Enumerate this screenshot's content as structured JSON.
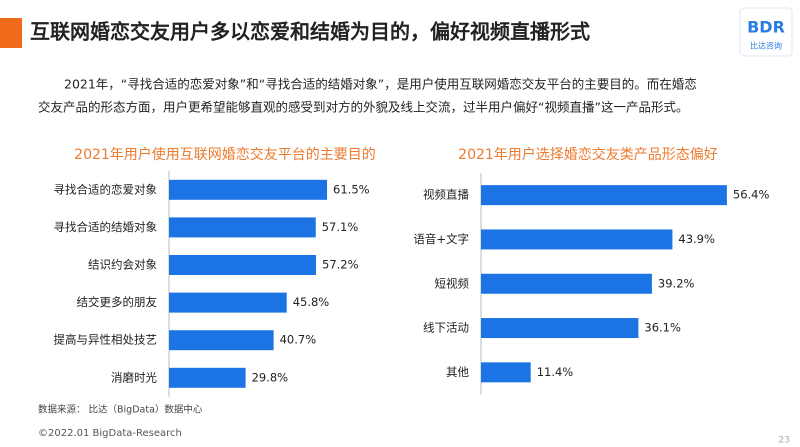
{
  "header": {
    "title": "互联网婚恋交友用户多以恋爱和结婚为目的，偏好视频直播形式",
    "logo": "BDR",
    "logo_sub": "比达咨询"
  },
  "description": [
    "2021年，“寻找合适的恋爱对象”和“寻找合适的结婚对象”，是用户使用互联网婚恋交友平台的主要目的。而在婚恋",
    "交友产品的形态方面，用户更希望能够直观的感受到对方的外貌及线上交流，过半用户偏好“视频直播”这一产品形式。"
  ],
  "chart_data": [
    {
      "type": "hbar",
      "title": "2021年用户使用互联网婚恋交友平台的主要目的",
      "color": "#1c74e4",
      "categories": [
        "寻找合适的恋爱对象",
        "寻找合适的结婚对象",
        "结识约会对象",
        "结交更多的朋友",
        "提高与异性相处技艺",
        "消磨时光"
      ],
      "values": [
        61.5,
        57.1,
        57.2,
        45.8,
        40.7,
        29.8
      ],
      "value_labels": [
        "61.5%",
        "57.1%",
        "57.2%",
        "45.8%",
        "40.7%",
        "29.8%"
      ]
    },
    {
      "type": "hbar",
      "title": "2021年用户选择婚恋交友类产品形态偏好",
      "color": "#1c74e4",
      "categories": [
        "视频直播",
        "语音+文字",
        "短视频",
        "线下活动",
        "其他"
      ],
      "values": [
        56.4,
        43.9,
        39.2,
        36.1,
        11.4
      ],
      "value_labels": [
        "56.4%",
        "43.9%",
        "39.2%",
        "36.1%",
        "11.4%"
      ]
    }
  ],
  "source": "数据来源：  比达（BigData）数据中心",
  "footer": "©2022.01 BigData-Research",
  "page_number": "23"
}
